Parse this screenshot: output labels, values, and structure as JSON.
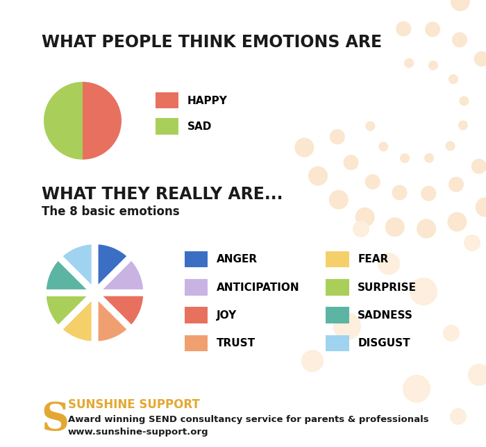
{
  "chart_data": [
    {
      "type": "pie",
      "title": "WHAT PEOPLE THINK EMOTIONS ARE",
      "categories": [
        "HAPPY",
        "SAD"
      ],
      "values": [
        50,
        50
      ],
      "colors": [
        "#e8705f",
        "#a9cf5a"
      ],
      "legend": "upper left"
    },
    {
      "type": "pie",
      "title": "WHAT THEY REALLY ARE...",
      "subtitle": "The 8 basic emotions",
      "categories": [
        "ANGER",
        "ANTICIPATION",
        "JOY",
        "TRUST",
        "FEAR",
        "SURPRISE",
        "SADNESS",
        "DISGUST"
      ],
      "values": [
        12.5,
        12.5,
        12.5,
        12.5,
        12.5,
        12.5,
        12.5,
        12.5
      ],
      "colors": [
        "#3a6fc4",
        "#c9b3e3",
        "#e8705f",
        "#f0a070",
        "#f5d06a",
        "#a9cf5a",
        "#5bb5a2",
        "#9fd3f0"
      ],
      "legend": "upper left"
    }
  ],
  "footer": {
    "logo": "S",
    "brand": "SUNSHINE SUPPORT",
    "tagline": "Award winning SEND consultancy service for parents & professionals",
    "url": "www.sunshine-support.org"
  }
}
